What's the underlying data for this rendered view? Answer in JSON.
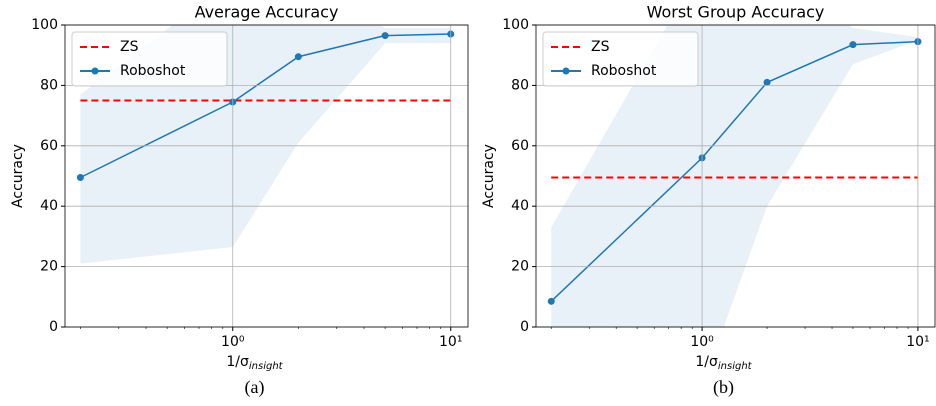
{
  "chart_data": [
    {
      "type": "line",
      "title": "Average Accuracy",
      "xlabel": "1/σ",
      "xlabel_sub": "insight",
      "ylabel": "Accuracy",
      "caption": "(a)",
      "log_x": true,
      "grid": true,
      "legend": "upper left",
      "x": [
        0.2,
        1,
        2,
        5,
        10
      ],
      "series": [
        {
          "name": "ZS",
          "color": "#ff0000",
          "style": "dashed",
          "values": [
            75,
            75,
            75,
            75,
            75
          ]
        },
        {
          "name": "Roboshot",
          "color": "#1f77b4",
          "style": "solid-marker",
          "values": [
            49.5,
            74.5,
            89.5,
            96.5,
            97
          ],
          "band_lower": [
            21,
            26.5,
            61,
            94,
            94
          ],
          "band_upper": [
            77,
            115,
            115,
            99,
            99
          ]
        }
      ],
      "xlim": [
        0.17,
        12
      ],
      "xticks": [
        {
          "value": 1,
          "label": "10⁰"
        },
        {
          "value": 10,
          "label": "10¹"
        }
      ],
      "ylim": [
        0,
        100
      ],
      "yticks": [
        0,
        20,
        40,
        60,
        80,
        100
      ]
    },
    {
      "type": "line",
      "title": "Worst Group Accuracy",
      "xlabel": "1/σ",
      "xlabel_sub": "insight",
      "ylabel": "Accuracy",
      "caption": "(b)",
      "log_x": true,
      "grid": true,
      "legend": "upper left",
      "x": [
        0.2,
        1,
        2,
        5,
        10
      ],
      "series": [
        {
          "name": "ZS",
          "color": "#ff0000",
          "style": "dashed",
          "values": [
            49.5,
            49.5,
            49.5,
            49.5,
            49.5
          ]
        },
        {
          "name": "Roboshot",
          "color": "#1f77b4",
          "style": "solid-marker",
          "values": [
            8.5,
            56,
            81,
            93.5,
            94.5
          ],
          "band_lower": [
            -15,
            -20,
            40,
            87,
            95
          ],
          "band_upper": [
            33,
            120,
            120,
            99,
            96
          ]
        }
      ],
      "xlim": [
        0.17,
        12
      ],
      "xticks": [
        {
          "value": 1,
          "label": "10⁰"
        },
        {
          "value": 10,
          "label": "10¹"
        }
      ],
      "ylim": [
        0,
        100
      ],
      "yticks": [
        0,
        20,
        40,
        60,
        80,
        100
      ]
    }
  ]
}
